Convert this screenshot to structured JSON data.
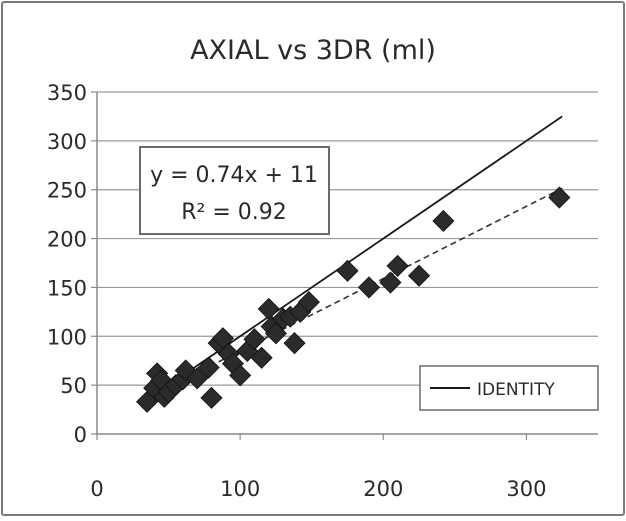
{
  "chart_data": {
    "type": "scatter",
    "title": "AXIAL vs 3DR (ml)",
    "xlabel": "",
    "ylabel": "",
    "xlim": [
      0,
      350
    ],
    "ylim": [
      0,
      350
    ],
    "x_ticks": [
      0,
      100,
      200,
      300
    ],
    "y_ticks": [
      0,
      50,
      100,
      150,
      200,
      250,
      300,
      350
    ],
    "grid": "horizontal",
    "legend_position": "bottom-right",
    "annotation": {
      "equation": "y = 0.74x + 11",
      "r_squared": "R² = 0.92"
    },
    "lines": [
      {
        "name": "IDENTITY",
        "style": "solid",
        "color": "#1a1a1a",
        "x": [
          35,
          325
        ],
        "y": [
          35,
          325
        ]
      },
      {
        "name": "",
        "style": "dashed",
        "color": "#333333",
        "x": [
          35,
          325
        ],
        "y": [
          36.9,
          251.5
        ]
      }
    ],
    "series": [
      {
        "name": "",
        "marker": "diamond",
        "color": "#2b2b2b",
        "points": [
          [
            35,
            33
          ],
          [
            40,
            47
          ],
          [
            42,
            62
          ],
          [
            45,
            55
          ],
          [
            47,
            38
          ],
          [
            50,
            43
          ],
          [
            55,
            50
          ],
          [
            60,
            56
          ],
          [
            62,
            65
          ],
          [
            70,
            57
          ],
          [
            78,
            68
          ],
          [
            80,
            37
          ],
          [
            85,
            93
          ],
          [
            88,
            98
          ],
          [
            92,
            82
          ],
          [
            95,
            72
          ],
          [
            100,
            60
          ],
          [
            105,
            85
          ],
          [
            110,
            97
          ],
          [
            115,
            78
          ],
          [
            120,
            128
          ],
          [
            122,
            110
          ],
          [
            125,
            103
          ],
          [
            130,
            118
          ],
          [
            135,
            120
          ],
          [
            138,
            93
          ],
          [
            142,
            125
          ],
          [
            148,
            135
          ],
          [
            175,
            167
          ],
          [
            190,
            150
          ],
          [
            205,
            155
          ],
          [
            210,
            172
          ],
          [
            225,
            162
          ],
          [
            242,
            218
          ],
          [
            323,
            242
          ]
        ]
      }
    ],
    "colors": {
      "grid": "#9a9a9a",
      "axis": "#8a8a8a",
      "text": "#2a2a2a",
      "marker": "#2b2b2b",
      "marker_edge": "#111111",
      "border": "#7a7a7a"
    }
  }
}
